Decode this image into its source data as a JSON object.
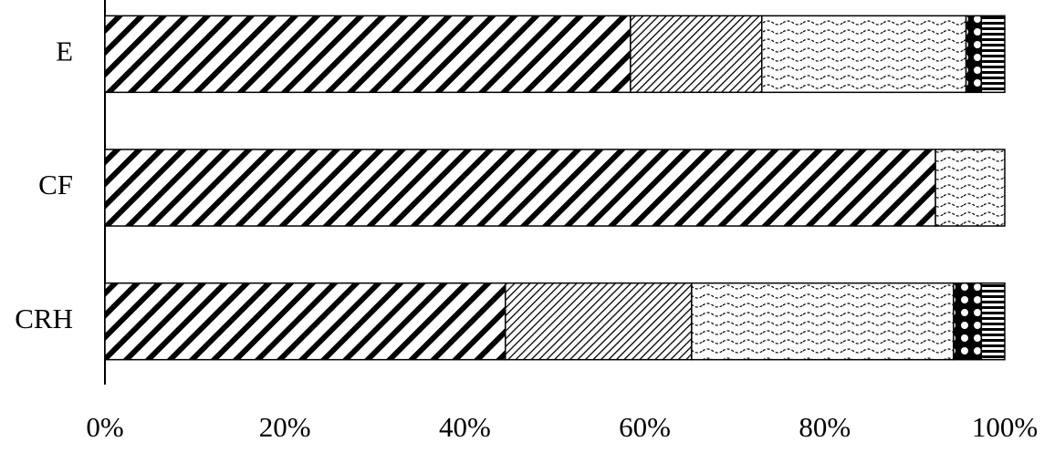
{
  "chart_data": {
    "type": "stacked-bar-horizontal",
    "categories": [
      "E",
      "CF",
      "CRH"
    ],
    "series": [
      {
        "pattern": "diagonal",
        "values": [
          58.4,
          92.3,
          44.5
        ]
      },
      {
        "pattern": "fine-diagonal",
        "values": [
          14.6,
          0,
          20.7
        ]
      },
      {
        "pattern": "wave",
        "values": [
          22.7,
          7.7,
          29.1
        ]
      },
      {
        "pattern": "circles",
        "values": [
          1.7,
          0,
          3.1
        ]
      },
      {
        "pattern": "horizontal",
        "values": [
          2.6,
          0,
          2.6
        ]
      }
    ],
    "xlim": [
      0,
      100
    ],
    "xticks": [
      {
        "value": 0,
        "label": "0%"
      },
      {
        "value": 20,
        "label": "20%"
      },
      {
        "value": 40,
        "label": "40%"
      },
      {
        "value": 60,
        "label": "60%"
      },
      {
        "value": 80,
        "label": "80%"
      },
      {
        "value": 100,
        "label": "100%"
      }
    ],
    "grid": false
  }
}
